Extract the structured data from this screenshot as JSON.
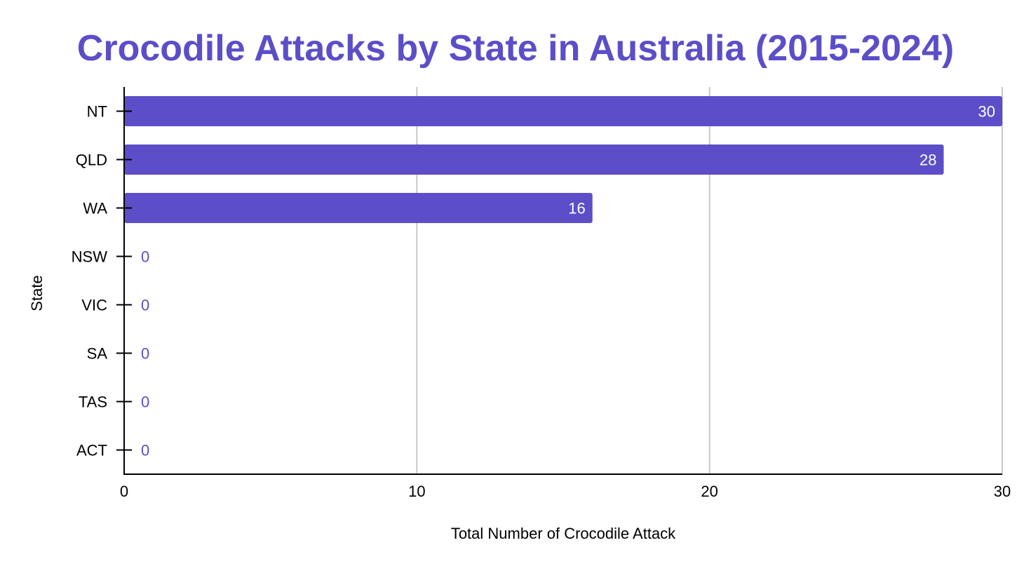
{
  "chart_data": {
    "type": "bar",
    "orientation": "horizontal",
    "title": "Crocodile Attacks by State in Australia (2015-2024)",
    "xlabel": "Total Number of Crocodile Attack",
    "ylabel": "State",
    "categories": [
      "NT",
      "QLD",
      "WA",
      "NSW",
      "VIC",
      "SA",
      "TAS",
      "ACT"
    ],
    "values": [
      30,
      28,
      16,
      0,
      0,
      0,
      0,
      0
    ],
    "data_labels": [
      "30",
      "28",
      "16",
      "0",
      "0",
      "0",
      "0",
      "0"
    ],
    "xlim": [
      0,
      30
    ],
    "xticks": [
      0,
      10,
      20,
      30
    ],
    "xtick_labels": [
      "0",
      "10",
      "20",
      "30"
    ],
    "grid": true,
    "legend": "none"
  },
  "colors": {
    "bar": "#5b4ec8",
    "title": "#5b4ec8",
    "label_inside": "#ffffff",
    "label_outside": "#5b4ec8",
    "grid": "#c8c8c8",
    "axis": "#000000"
  }
}
